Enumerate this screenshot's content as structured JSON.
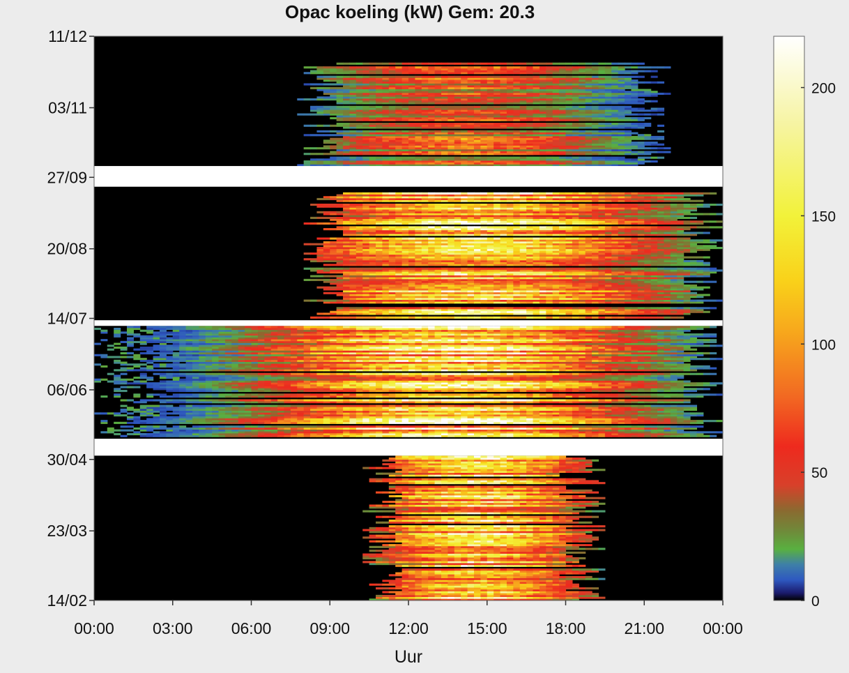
{
  "chart_data": {
    "type": "heatmap",
    "title": "Opac koeling (kW) Gem: 20.3",
    "xlabel": "Uur",
    "ylabel": "",
    "x_ticks": [
      "00:00",
      "03:00",
      "06:00",
      "09:00",
      "12:00",
      "15:00",
      "18:00",
      "21:00",
      "00:00"
    ],
    "xlim": [
      0,
      24
    ],
    "y_ticks": [
      "11/12",
      "03/11",
      "27/09",
      "20/08",
      "14/07",
      "06/06",
      "30/04",
      "23/03",
      "14/02"
    ],
    "y_tick_days": [
      345,
      307,
      270,
      232,
      195,
      157,
      120,
      82,
      45
    ],
    "ylim": [
      45,
      345
    ],
    "colorbar": {
      "ticks": [
        0,
        50,
        100,
        150,
        200
      ],
      "range": [
        0,
        220
      ],
      "stops": [
        {
          "v": 0,
          "color": "#000000"
        },
        {
          "v": 3,
          "color": "#1b1b6e"
        },
        {
          "v": 8,
          "color": "#2e58c0"
        },
        {
          "v": 14,
          "color": "#3e7fa8"
        },
        {
          "v": 20,
          "color": "#59b040"
        },
        {
          "v": 27,
          "color": "#6f8a3a"
        },
        {
          "v": 35,
          "color": "#8a6a30"
        },
        {
          "v": 45,
          "color": "#d8402a"
        },
        {
          "v": 60,
          "color": "#ee2a1e"
        },
        {
          "v": 80,
          "color": "#f26a22"
        },
        {
          "v": 105,
          "color": "#f7a81c"
        },
        {
          "v": 125,
          "color": "#f9d21a"
        },
        {
          "v": 150,
          "color": "#f2f23a"
        },
        {
          "v": 185,
          "color": "#f6f4a0"
        },
        {
          "v": 220,
          "color": "#ffffff"
        }
      ]
    },
    "gaps": [
      {
        "from_day": 265,
        "to_day": 276
      },
      {
        "from_day": 191,
        "to_day": 194
      },
      {
        "from_day": 122,
        "to_day": 131
      }
    ],
    "patterns": [
      {
        "from_day": 276,
        "to_day": 331,
        "start_hour": 8.2,
        "end_hour": 22.0,
        "peak_hour": 14.0,
        "peak": 85,
        "spread": 3.5
      },
      {
        "from_day": 194,
        "to_day": 262,
        "start_hour": 8.3,
        "end_hour": 24.0,
        "peak_hour": 14.5,
        "peak": 175,
        "spread": 4.5
      },
      {
        "from_day": 131,
        "to_day": 191,
        "start_hour": 0.0,
        "end_hour": 24.0,
        "peak_hour": 13.5,
        "peak": 200,
        "spread": 4.5
      },
      {
        "from_day": 45,
        "to_day": 122,
        "start_hour": 10.5,
        "end_hour": 19.5,
        "peak_hour": 14.5,
        "peak": 165,
        "spread": 2.8
      }
    ]
  }
}
